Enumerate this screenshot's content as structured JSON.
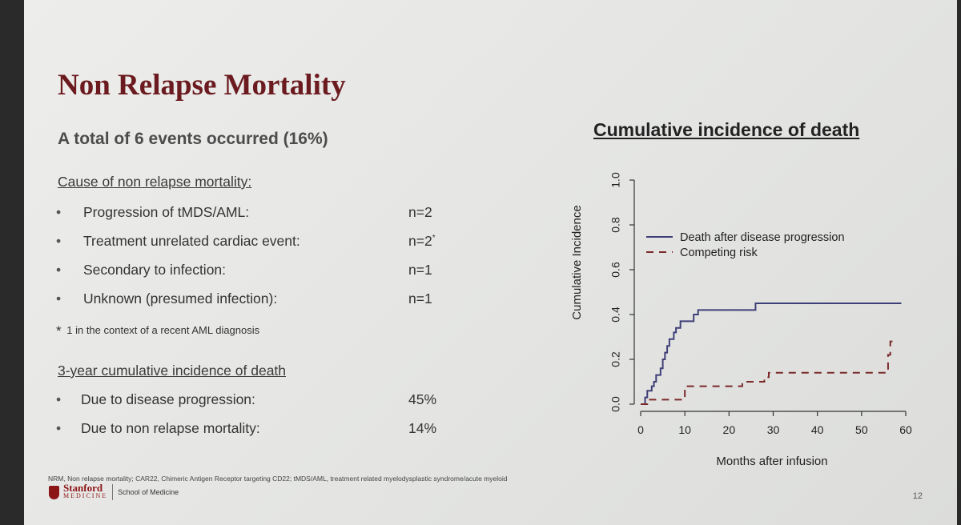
{
  "slide": {
    "title": "Non Relapse Mortality",
    "subtitle": "A total of 6 events occurred (16%)",
    "causes_heading": "Cause of non relapse mortality:",
    "causes": [
      {
        "label": "Progression of tMDS/AML:",
        "value": "n=2",
        "mark": ""
      },
      {
        "label": "Treatment unrelated cardiac event:",
        "value": "n=2",
        "mark": "*"
      },
      {
        "label": "Secondary to infection:",
        "value": "n=1",
        "mark": ""
      },
      {
        "label": "Unknown (presumed infection):",
        "value": "n=1",
        "mark": ""
      }
    ],
    "footnote_star": "*",
    "footnote": "1 in the context of a recent AML diagnosis",
    "incidence_heading": "3-year cumulative incidence of death",
    "incidence": [
      {
        "label": "Due to disease progression:",
        "value": "45%"
      },
      {
        "label": "Due to non relapse mortality:",
        "value": "14%"
      }
    ],
    "abbreviations": "NRM, Non relapse mortality; CAR22, Chimeric Antigen Receptor targeting CD22; tMDS/AML, treatment related myelodysplastic syndrome/acute myeloid",
    "logo_name": "Stanford",
    "logo_sub": "MEDICINE",
    "logo_school": "School of Medicine",
    "page_number": "12",
    "bullet_char": "•"
  },
  "chart_data": {
    "type": "line",
    "title": "Cumulative incidence of death",
    "xlabel": "Months after infusion",
    "ylabel": "Cumulative Incidence",
    "xlim": [
      0,
      60
    ],
    "ylim": [
      0,
      1.0
    ],
    "xticks": [
      0,
      10,
      20,
      30,
      40,
      50,
      60
    ],
    "yticks": [
      0.0,
      0.2,
      0.4,
      0.6,
      0.8,
      1.0
    ],
    "ytick_labels": [
      "0.0",
      "0.2",
      "0.4",
      "0.6",
      "0.8",
      "1.0"
    ],
    "legend_position": "top-left",
    "series": [
      {
        "name": "Death after disease progression",
        "style": "solid",
        "color": "#3f3f78",
        "steps": [
          [
            0,
            0
          ],
          [
            1,
            0.03
          ],
          [
            1.5,
            0.06
          ],
          [
            2.5,
            0.08
          ],
          [
            3,
            0.1
          ],
          [
            3.5,
            0.13
          ],
          [
            4.5,
            0.16
          ],
          [
            5,
            0.2
          ],
          [
            5.5,
            0.23
          ],
          [
            6,
            0.26
          ],
          [
            6.5,
            0.29
          ],
          [
            7.5,
            0.32
          ],
          [
            8,
            0.34
          ],
          [
            9,
            0.37
          ],
          [
            12,
            0.4
          ],
          [
            13,
            0.42
          ],
          [
            26,
            0.45
          ],
          [
            59,
            0.45
          ]
        ]
      },
      {
        "name": "Competing risk",
        "style": "dashed",
        "color": "#7a2a2a",
        "steps": [
          [
            0,
            0
          ],
          [
            1.5,
            0.02
          ],
          [
            10,
            0.08
          ],
          [
            23,
            0.1
          ],
          [
            28,
            0.12
          ],
          [
            29,
            0.14
          ],
          [
            56,
            0.22
          ],
          [
            56.5,
            0.28
          ],
          [
            57,
            0.28
          ]
        ]
      }
    ]
  }
}
